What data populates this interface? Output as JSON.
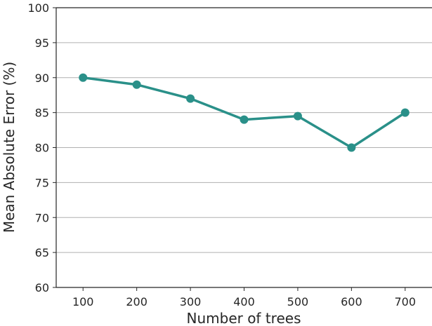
{
  "chart_data": {
    "type": "line",
    "title": "",
    "xlabel": "Number of trees",
    "ylabel": "Mean Absolute Error (%)",
    "x": [
      100,
      200,
      300,
      400,
      500,
      600,
      700
    ],
    "series": [
      {
        "values": [
          90,
          89,
          87,
          84,
          84.5,
          80,
          85
        ],
        "color": "#2a9089"
      }
    ],
    "xticks": [
      "100",
      "200",
      "300",
      "400",
      "500",
      "600",
      "700"
    ],
    "yticks": [
      "60",
      "65",
      "70",
      "75",
      "80",
      "85",
      "90",
      "95",
      "100"
    ],
    "xlim": [
      50,
      750
    ],
    "ylim": [
      60,
      100
    ],
    "grid": "y-major",
    "legend": "none"
  }
}
